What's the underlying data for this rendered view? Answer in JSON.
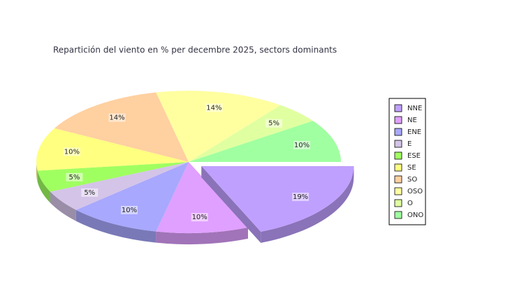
{
  "chart_data": {
    "type": "pie3d",
    "title": "Repartición del viento en % per decembre 2025, sectors dominants",
    "categories": [
      "NNE",
      "NE",
      "ENE",
      "E",
      "ESE",
      "SE",
      "SO",
      "OSO",
      "O",
      "ONO"
    ],
    "values": [
      19,
      10,
      10,
      5,
      5,
      10,
      14,
      14,
      5,
      10
    ],
    "value_labels": [
      "19%",
      "10%",
      "10%",
      "5%",
      "5%",
      "10%",
      "14%",
      "14%",
      "5%",
      "10%"
    ],
    "colors": [
      "#c0a0ff",
      "#e0a0ff",
      "#a8a8ff",
      "#d4c4e8",
      "#a0ff60",
      "#ffff80",
      "#ffd0a0",
      "#ffffa0",
      "#e0ffa0",
      "#a0ffa0"
    ],
    "exploded": [
      0
    ]
  }
}
